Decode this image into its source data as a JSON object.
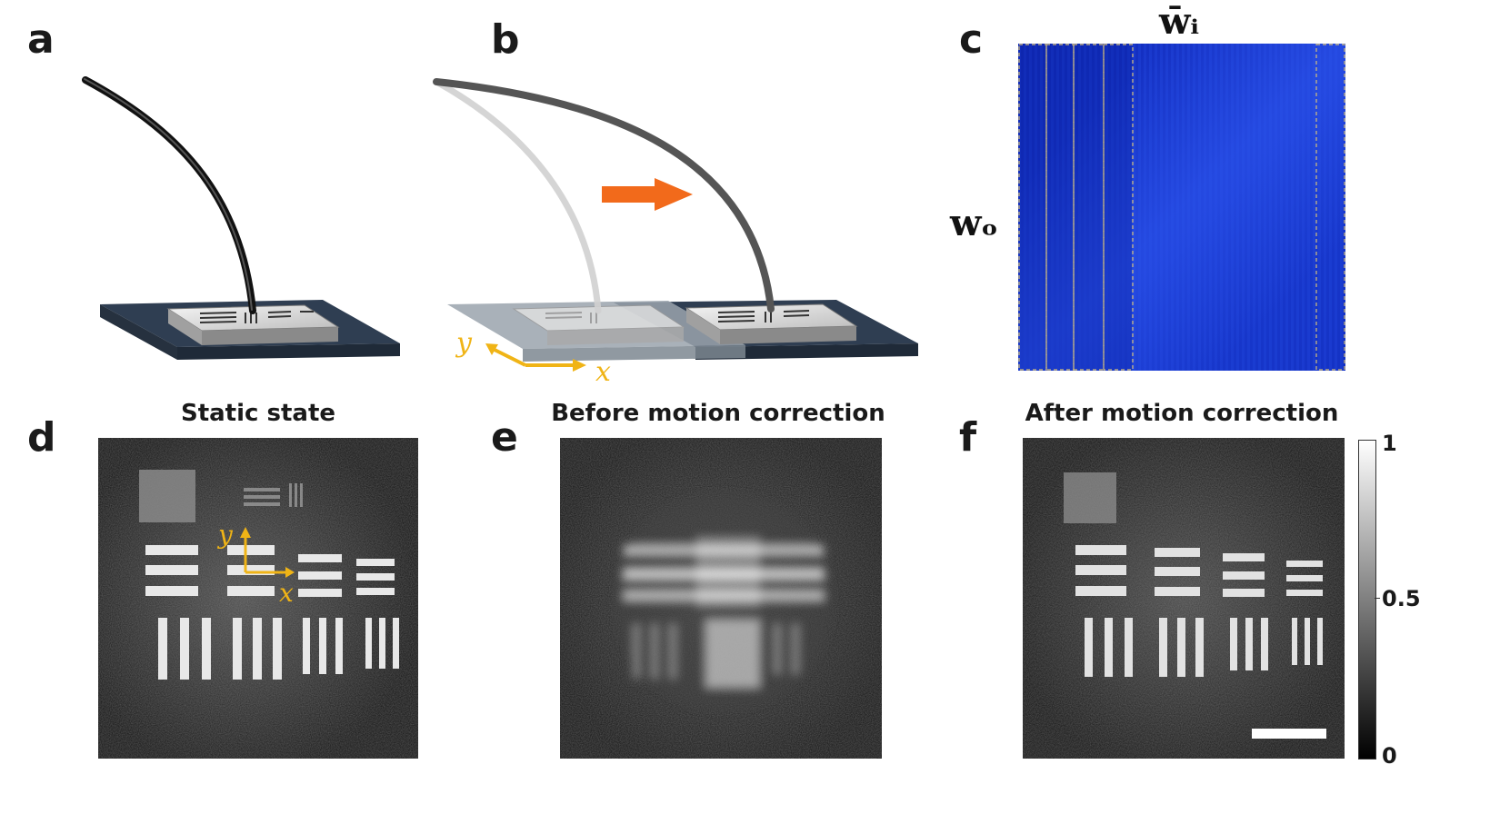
{
  "panels": {
    "a": {
      "letter": "a"
    },
    "b": {
      "letter": "b",
      "axis_x": "x",
      "axis_y": "y"
    },
    "c": {
      "letter": "c",
      "col_label": "w̄ᵢ",
      "row_label": "wₒ"
    },
    "d": {
      "letter": "d",
      "title": "Static state",
      "axis_x": "x",
      "axis_y": "y"
    },
    "e": {
      "letter": "e",
      "title": "Before motion correction"
    },
    "f": {
      "letter": "f",
      "title": "After motion correction"
    }
  },
  "colorbar": {
    "max_label": "1",
    "mid_label": "0.5",
    "min_label": "0"
  },
  "colors": {
    "accent_orange": "#f26a1b",
    "axis_gold": "#f0b416",
    "matrix_blue": "#1530c8",
    "stage_dark": "#2f3e52"
  }
}
